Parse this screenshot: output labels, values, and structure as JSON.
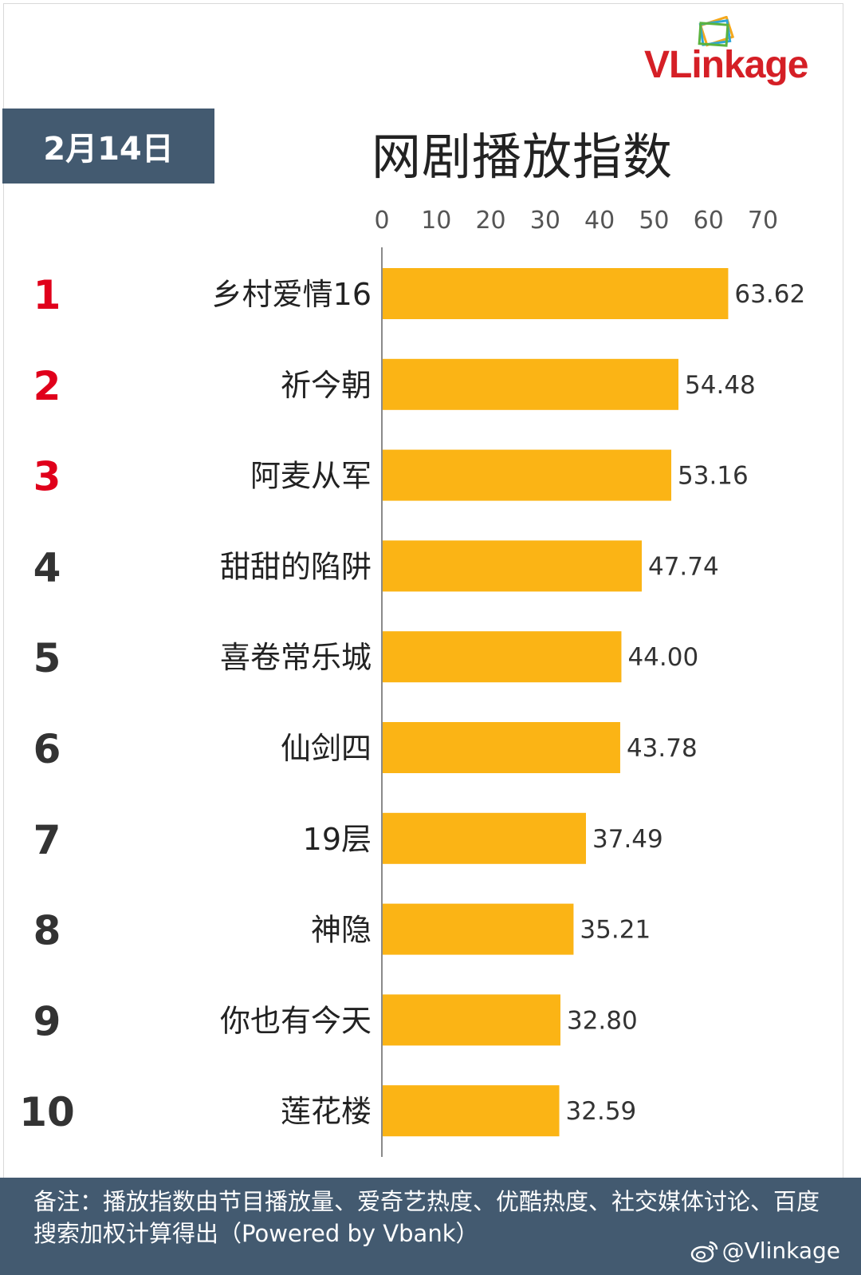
{
  "header": {
    "logo_text": "VLinkage",
    "date": "2月14日",
    "title": "网剧播放指数"
  },
  "chart_data": {
    "type": "bar",
    "orientation": "horizontal",
    "title": "网剧播放指数",
    "xlim": [
      0,
      70
    ],
    "ticks": [
      0,
      10,
      20,
      30,
      40,
      50,
      60,
      70
    ],
    "ranks": [
      "1",
      "2",
      "3",
      "4",
      "5",
      "6",
      "7",
      "8",
      "9",
      "10"
    ],
    "categories": [
      "乡村爱情16",
      "祈今朝",
      "阿麦从军",
      "甜甜的陷阱",
      "喜卷常乐城",
      "仙剑四",
      "19层",
      "神隐",
      "你也有今天",
      "莲花楼"
    ],
    "values": [
      63.62,
      54.48,
      53.16,
      47.74,
      44.0,
      43.78,
      37.49,
      35.21,
      32.8,
      32.59
    ],
    "value_labels": [
      "63.62",
      "54.48",
      "53.16",
      "47.74",
      "44.00",
      "43.78",
      "37.49",
      "35.21",
      "32.80",
      "32.59"
    ],
    "bar_color": "#fbb415",
    "top_rank_color": "#e0001b",
    "rank_color": "#333333",
    "grid": false
  },
  "footer": {
    "note": "备注：播放指数由节目播放量、爱奇艺热度、优酷热度、社交媒体讨论、百度搜索加权计算得出（Powered by Vbank）",
    "weibo_handle": "@Vlinkage"
  }
}
